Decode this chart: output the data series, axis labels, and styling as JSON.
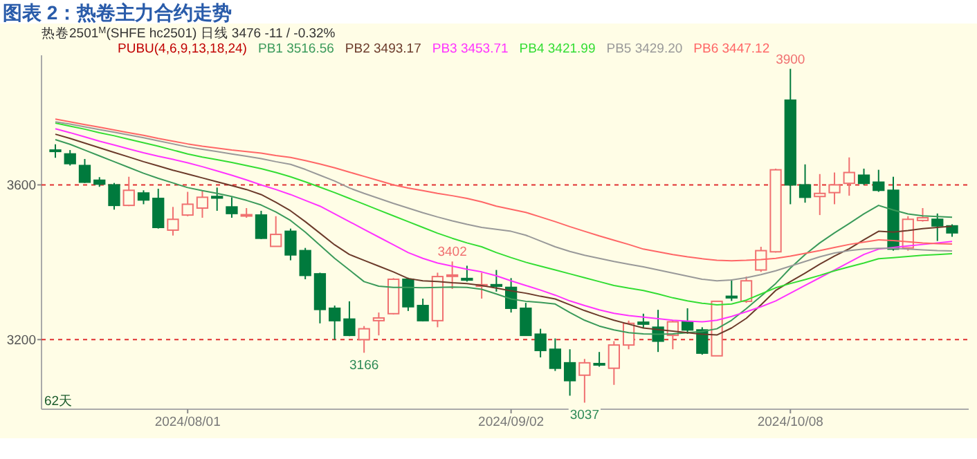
{
  "chart_data": {
    "type": "candlestick",
    "title": "图表 2：热卷主力合约走势",
    "subtitle": "热卷2501$^{M}$(SHFE hc2501)  日线  3476  -11 / -0.32%",
    "legend_title": "PUBU(4,6,9,13,18,24)",
    "categories": [
      null,
      null,
      null,
      null,
      null,
      null,
      null,
      null,
      null,
      "2024/08/01",
      null,
      null,
      null,
      null,
      null,
      null,
      null,
      null,
      null,
      null,
      null,
      null,
      null,
      null,
      null,
      null,
      null,
      null,
      null,
      null,
      null,
      "2024/09/02",
      null,
      null,
      null,
      null,
      null,
      null,
      null,
      null,
      null,
      null,
      null,
      null,
      null,
      null,
      null,
      null,
      null,
      null,
      "2024/10/08",
      null,
      null,
      null,
      null,
      null,
      null,
      null,
      null,
      null,
      null,
      null
    ],
    "ohlc": [
      [
        3690,
        3705,
        3670,
        3688
      ],
      [
        3680,
        3690,
        3650,
        3655
      ],
      [
        3650,
        3667,
        3605,
        3607
      ],
      [
        3612,
        3620,
        3595,
        3602
      ],
      [
        3600,
        3605,
        3536,
        3547
      ],
      [
        3547,
        3621,
        3545,
        3586
      ],
      [
        3579,
        3586,
        3550,
        3561
      ],
      [
        3565,
        3590,
        3487,
        3490
      ],
      [
        3483,
        3543,
        3469,
        3511
      ],
      [
        3522,
        3582,
        3519,
        3550
      ],
      [
        3540,
        3586,
        3515,
        3568
      ],
      [
        3570,
        3593,
        3533,
        3566
      ],
      [
        3543,
        3568,
        3515,
        3526
      ],
      [
        3520,
        3540,
        3515,
        3523
      ],
      [
        3522,
        3533,
        3460,
        3462
      ],
      [
        3441,
        3519,
        3440,
        3472
      ],
      [
        3480,
        3487,
        3405,
        3419
      ],
      [
        3430,
        3437,
        3356,
        3366
      ],
      [
        3370,
        3373,
        3242,
        3278
      ],
      [
        3281,
        3288,
        3200,
        3249
      ],
      [
        3253,
        3299,
        3209,
        3211
      ],
      [
        3200,
        3235,
        3166,
        3228
      ],
      [
        3249,
        3270,
        3211,
        3256
      ],
      [
        3267,
        3359,
        3265,
        3356
      ],
      [
        3356,
        3360,
        3274,
        3285
      ],
      [
        3288,
        3306,
        3247,
        3249
      ],
      [
        3249,
        3373,
        3232,
        3363
      ],
      [
        3364,
        3402,
        3331,
        3367
      ],
      [
        3358,
        3391,
        3350,
        3354
      ],
      [
        3338,
        3373,
        3306,
        3342
      ],
      [
        3342,
        3380,
        3324,
        3338
      ],
      [
        3335,
        3359,
        3270,
        3281
      ],
      [
        3281,
        3295,
        3210,
        3211
      ],
      [
        3214,
        3228,
        3154,
        3172
      ],
      [
        3175,
        3203,
        3119,
        3126
      ],
      [
        3140,
        3175,
        3055,
        3094
      ],
      [
        3108,
        3150,
        3037,
        3140
      ],
      [
        3138,
        3168,
        3130,
        3135
      ],
      [
        3126,
        3196,
        3083,
        3186
      ],
      [
        3186,
        3249,
        3175,
        3242
      ],
      [
        3245,
        3267,
        3230,
        3240
      ],
      [
        3232,
        3277,
        3168,
        3196
      ],
      [
        3211,
        3250,
        3175,
        3246
      ],
      [
        3246,
        3281,
        3215,
        3225
      ],
      [
        3225,
        3232,
        3161,
        3165
      ],
      [
        3158,
        3300,
        3158,
        3299
      ],
      [
        3312,
        3356,
        3300,
        3308
      ],
      [
        3299,
        3363,
        3295,
        3352
      ],
      [
        3380,
        3440,
        3375,
        3430
      ],
      [
        3427,
        3642,
        3425,
        3639
      ],
      [
        3819,
        3900,
        3550,
        3600
      ],
      [
        3600,
        3653,
        3554,
        3568
      ],
      [
        3570,
        3628,
        3522,
        3578
      ],
      [
        3580,
        3632,
        3550,
        3600
      ],
      [
        3604,
        3671,
        3572,
        3632
      ],
      [
        3625,
        3642,
        3600,
        3604
      ],
      [
        3607,
        3639,
        3582,
        3586
      ],
      [
        3586,
        3621,
        3430,
        3434
      ],
      [
        3437,
        3519,
        3430,
        3511
      ],
      [
        3508,
        3540,
        3505,
        3515
      ],
      [
        3511,
        3526,
        3455,
        3494
      ],
      [
        3494,
        3498,
        3466,
        3476
      ]
    ],
    "series": [
      {
        "type": "line",
        "name": "PB1 3516.56",
        "color": "#3a9a5a",
        "values": [
          3717,
          3705,
          3690,
          3675,
          3660,
          3645,
          3630,
          3617,
          3605,
          3593,
          3585,
          3578,
          3570,
          3560,
          3548,
          3530,
          3508,
          3478,
          3444,
          3410,
          3380,
          3350,
          3338,
          3335,
          3335,
          3334,
          3335,
          3336,
          3335,
          3330,
          3318,
          3305,
          3299,
          3296,
          3292,
          3270,
          3250,
          3235,
          3225,
          3218,
          3215,
          3214,
          3215,
          3218,
          3221,
          3228,
          3250,
          3280,
          3312,
          3345,
          3385,
          3420,
          3450,
          3476,
          3500,
          3525,
          3547,
          3535,
          3525,
          3520,
          3518,
          3516.56
        ]
      },
      {
        "type": "line",
        "name": "PB2 3493.17",
        "color": "#6b3a2a",
        "values": [
          3731,
          3720,
          3708,
          3696,
          3684,
          3672,
          3660,
          3649,
          3638,
          3628,
          3618,
          3608,
          3598,
          3588,
          3575,
          3555,
          3533,
          3505,
          3475,
          3445,
          3420,
          3405,
          3390,
          3375,
          3358,
          3352,
          3350,
          3347,
          3345,
          3340,
          3333,
          3326,
          3320,
          3312,
          3305,
          3290,
          3275,
          3262,
          3250,
          3240,
          3230,
          3226,
          3222,
          3218,
          3214,
          3212,
          3230,
          3255,
          3290,
          3327,
          3350,
          3372,
          3395,
          3416,
          3435,
          3458,
          3480,
          3478,
          3482,
          3487,
          3490,
          3493.17
        ]
      },
      {
        "type": "line",
        "name": "PB3 3453.71",
        "color": "#ff33ff",
        "values": [
          3745,
          3735,
          3724,
          3713,
          3703,
          3693,
          3683,
          3674,
          3666,
          3657,
          3647,
          3636,
          3625,
          3613,
          3600,
          3588,
          3575,
          3560,
          3545,
          3525,
          3505,
          3485,
          3465,
          3445,
          3425,
          3410,
          3398,
          3390,
          3382,
          3375,
          3365,
          3352,
          3340,
          3328,
          3315,
          3300,
          3288,
          3277,
          3268,
          3262,
          3258,
          3254,
          3250,
          3248,
          3246,
          3250,
          3260,
          3272,
          3285,
          3300,
          3320,
          3340,
          3360,
          3380,
          3400,
          3420,
          3434,
          3438,
          3442,
          3446,
          3450,
          3453.71
        ]
      },
      {
        "type": "line",
        "name": "PB4 3421.99",
        "color": "#33dd33",
        "values": [
          3760,
          3752,
          3744,
          3735,
          3727,
          3718,
          3709,
          3700,
          3690,
          3680,
          3672,
          3665,
          3658,
          3650,
          3642,
          3632,
          3621,
          3608,
          3594,
          3580,
          3565,
          3550,
          3535,
          3520,
          3505,
          3490,
          3475,
          3462,
          3450,
          3440,
          3425,
          3412,
          3400,
          3390,
          3380,
          3370,
          3360,
          3350,
          3340,
          3333,
          3327,
          3318,
          3308,
          3300,
          3294,
          3290,
          3292,
          3302,
          3318,
          3334,
          3345,
          3355,
          3366,
          3378,
          3388,
          3398,
          3409,
          3412,
          3415,
          3418,
          3420,
          3421.99
        ]
      },
      {
        "type": "line",
        "name": "PB5 3429.20",
        "color": "#999999",
        "values": [
          3763,
          3757,
          3750,
          3743,
          3736,
          3729,
          3722,
          3714,
          3706,
          3698,
          3692,
          3686,
          3680,
          3674,
          3668,
          3660,
          3653,
          3640,
          3625,
          3610,
          3592,
          3578,
          3565,
          3552,
          3540,
          3528,
          3517,
          3507,
          3498,
          3490,
          3485,
          3480,
          3470,
          3455,
          3440,
          3428,
          3418,
          3410,
          3402,
          3395,
          3388,
          3380,
          3372,
          3364,
          3356,
          3352,
          3354,
          3360,
          3368,
          3378,
          3390,
          3402,
          3414,
          3424,
          3430,
          3434,
          3436,
          3436,
          3434,
          3432,
          3430,
          3429.2
        ]
      },
      {
        "type": "line",
        "name": "PB6 3447.12",
        "color": "#ff6666",
        "values": [
          3770,
          3763,
          3756,
          3749,
          3742,
          3735,
          3728,
          3720,
          3713,
          3706,
          3700,
          3695,
          3690,
          3686,
          3682,
          3676,
          3671,
          3663,
          3654,
          3644,
          3633,
          3622,
          3611,
          3600,
          3592,
          3585,
          3578,
          3572,
          3565,
          3556,
          3545,
          3537,
          3529,
          3517,
          3505,
          3492,
          3480,
          3468,
          3457,
          3446,
          3434,
          3427,
          3420,
          3414,
          3409,
          3405,
          3404,
          3405,
          3407,
          3410,
          3416,
          3423,
          3430,
          3438,
          3446,
          3452,
          3458,
          3456,
          3453,
          3450,
          3448,
          3447.12
        ]
      }
    ],
    "ylim": [
      3020,
      3935
    ],
    "yticks": [
      3200,
      3600
    ],
    "grid": "y",
    "legend": "top",
    "annotations": [
      {
        "text": "3900",
        "y": 3900
      },
      {
        "text": "3402",
        "y": 3402
      },
      {
        "text": "3166",
        "y": 3166
      },
      {
        "text": "3037",
        "y": 3037
      },
      "62天"
    ]
  }
}
